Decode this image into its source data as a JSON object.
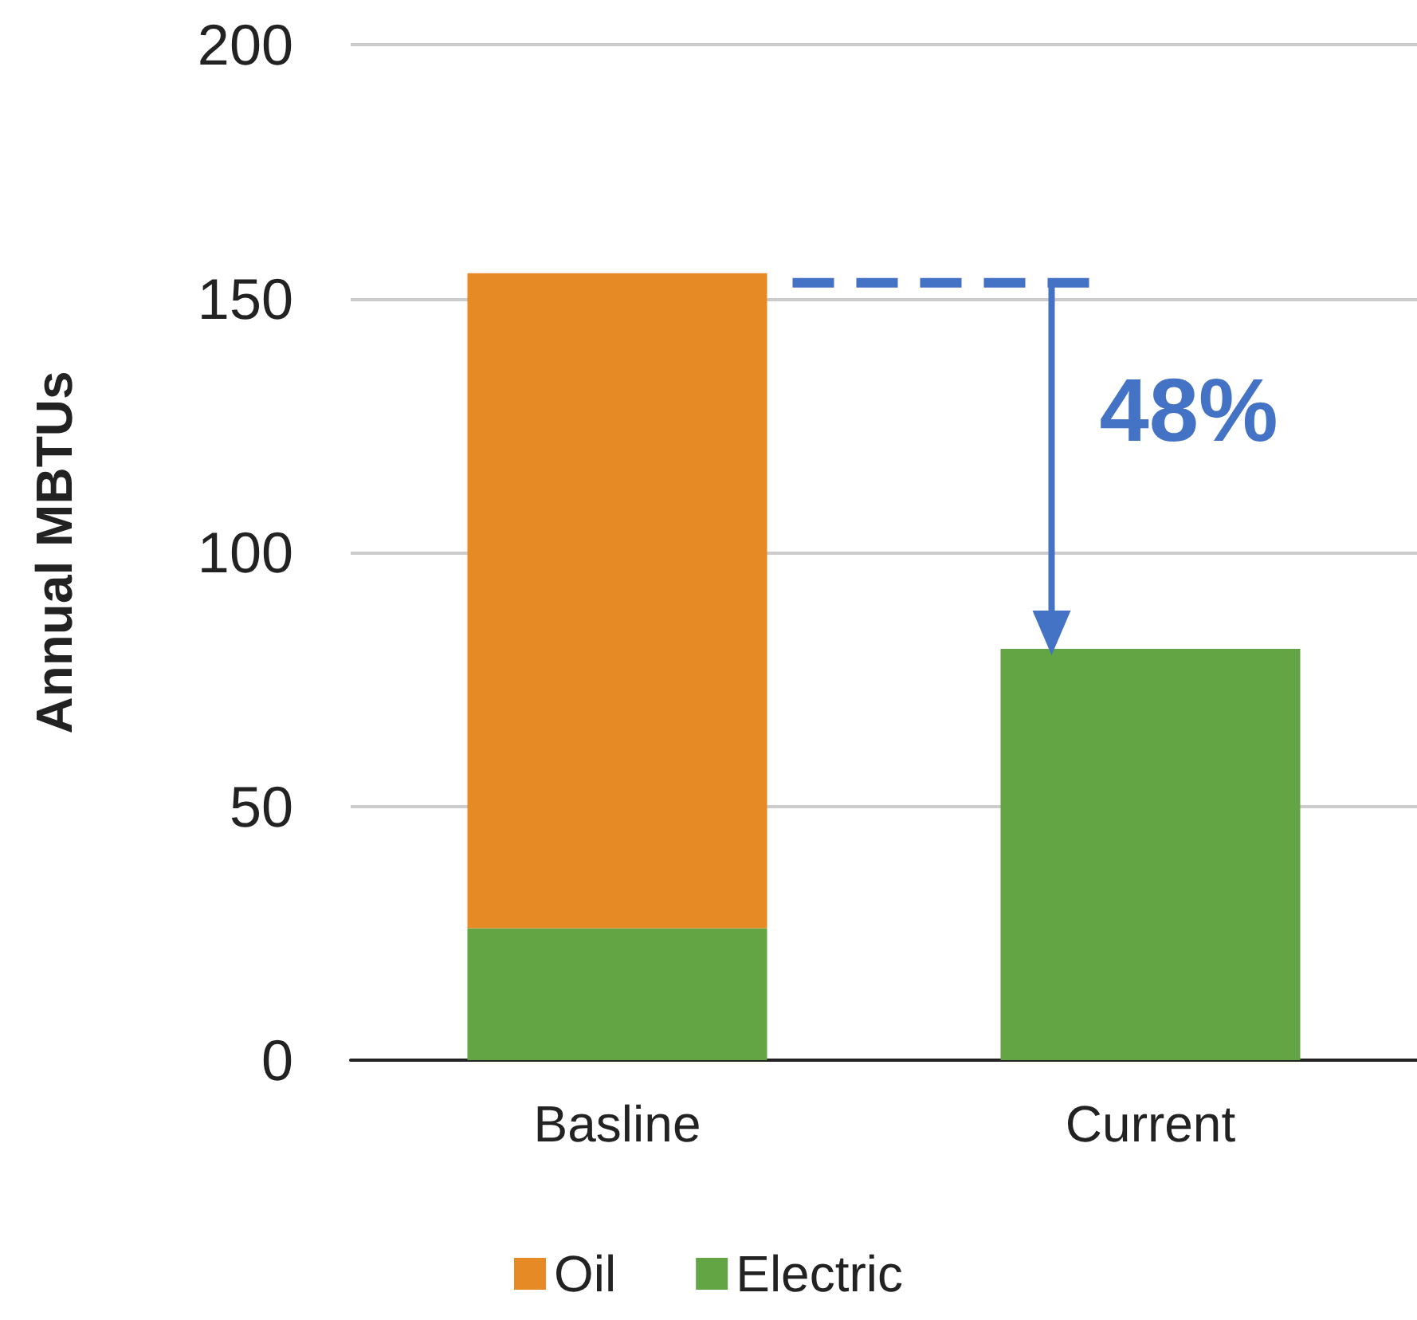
{
  "chart_data": {
    "type": "bar",
    "stacked": true,
    "ylabel": "Annual MBTUs",
    "categories": [
      "Basline",
      "Current"
    ],
    "series": [
      {
        "name": "Electric",
        "color": "#63a544",
        "values": [
          26,
          81
        ]
      },
      {
        "name": "Oil",
        "color": "#e68a26",
        "values": [
          129,
          null
        ]
      }
    ],
    "ylim": [
      0,
      200
    ],
    "yticks": [
      0,
      50,
      100,
      150,
      200
    ],
    "grid": "y",
    "legend": "bottom",
    "annotations": [
      "48%"
    ]
  }
}
